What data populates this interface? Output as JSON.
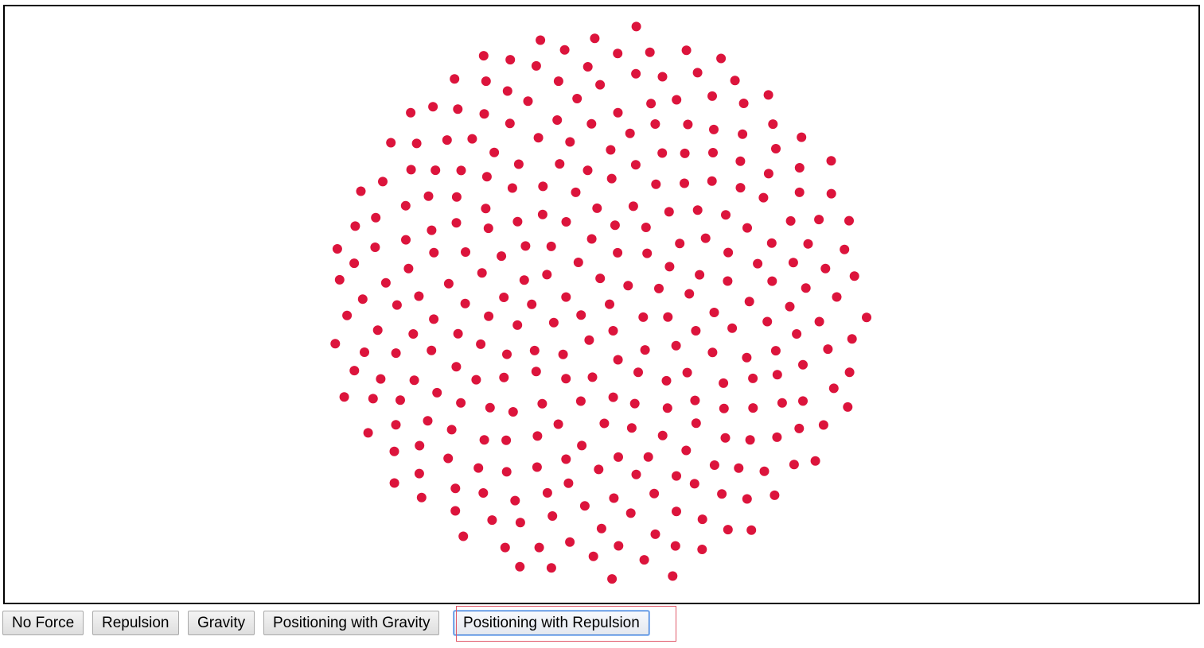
{
  "simulation": {
    "node_color": "#dc143c",
    "node_count": 300
  },
  "buttons": [
    {
      "label": "No Force",
      "active": false
    },
    {
      "label": "Repulsion",
      "active": false
    },
    {
      "label": "Gravity",
      "active": false
    },
    {
      "label": "Positioning with Gravity",
      "active": false
    },
    {
      "label": "Positioning with Repulsion",
      "active": true
    }
  ],
  "colors": {
    "border": "#000000",
    "focus_outline": "#3b7bd8",
    "highlight_box": "#e05a6a"
  }
}
